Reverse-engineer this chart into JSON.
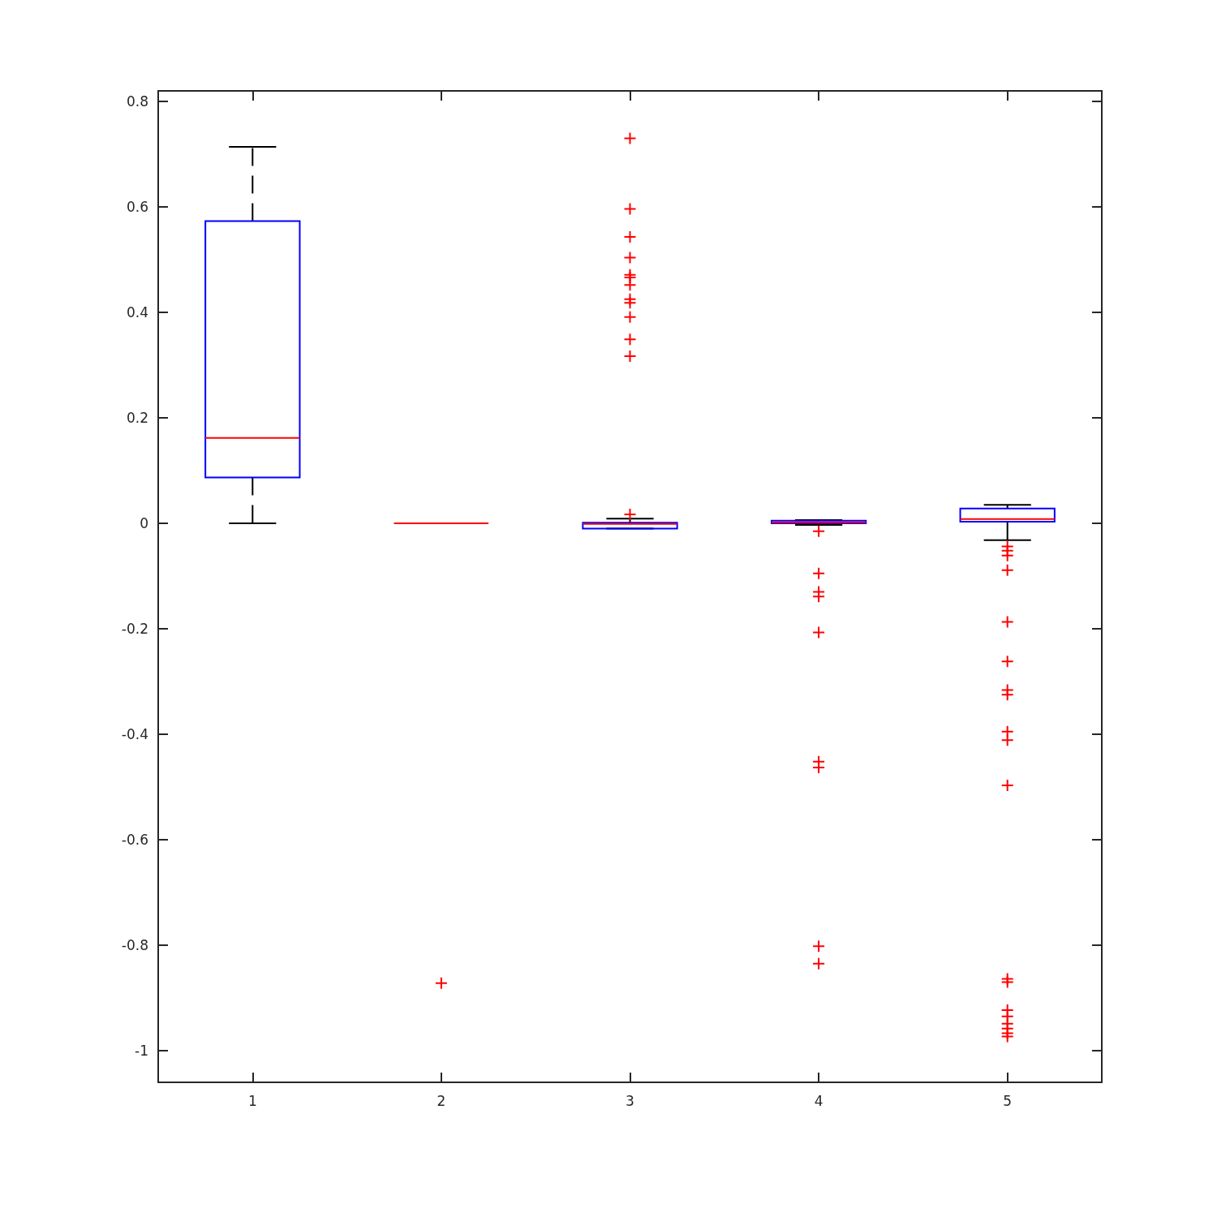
{
  "chart_data": {
    "type": "box",
    "categories": [
      "1",
      "2",
      "3",
      "4",
      "5"
    ],
    "ylim": [
      -1.06,
      0.82
    ],
    "yticks": [
      -1,
      -0.8,
      -0.6,
      -0.4,
      -0.2,
      0,
      0.2,
      0.4,
      0.6,
      0.8
    ],
    "grid": false,
    "marker": "cross",
    "series": [
      {
        "color": "#0000ff",
        "boxes": [
          {
            "low": 0,
            "q1": 0.087,
            "median": 0.162,
            "q3": 0.573,
            "high": 0.714
          },
          {
            "low": 0,
            "q1": 0,
            "median": 0,
            "q3": 0,
            "high": 0,
            "outliers": [
              -0.872
            ]
          },
          {
            "low": -0.01,
            "q1": -0.01,
            "median": -0.001,
            "q3": 0.001,
            "high": 0.009,
            "outliers": [
              0.73,
              0.596,
              0.543,
              0.504,
              0.471,
              0.466,
              0.452,
              0.425,
              0.418,
              0.391,
              0.349,
              0.317,
              0.017
            ]
          },
          {
            "low": -0.003,
            "q1": 0,
            "median": 0.002,
            "q3": 0.005,
            "high": 0.006,
            "outliers": [
              -0.015,
              -0.095,
              -0.13,
              -0.139,
              -0.207,
              -0.452,
              -0.463,
              -0.802,
              -0.835
            ]
          },
          {
            "low": -0.032,
            "q1": 0.003,
            "median": 0.008,
            "q3": 0.028,
            "high": 0.035,
            "outliers": [
              -0.044,
              -0.052,
              -0.061,
              -0.089,
              -0.187,
              -0.262,
              -0.316,
              -0.325,
              -0.395,
              -0.411,
              -0.497,
              -0.864,
              -0.87,
              -0.923,
              -0.935,
              -0.949,
              -0.958,
              -0.967,
              -0.973
            ]
          }
        ]
      }
    ]
  }
}
